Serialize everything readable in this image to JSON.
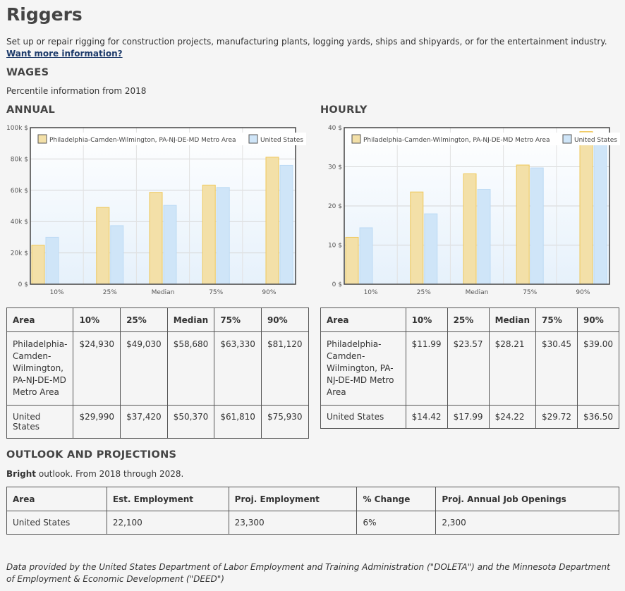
{
  "title": "Riggers",
  "description": "Set up or repair rigging for construction projects, manufacturing plants, logging yards, ships and shipyards, or for the entertainment industry.",
  "more_link": "Want more information?",
  "wages": {
    "heading": "WAGES",
    "note": "Percentile information from 2018",
    "annual_heading": "ANNUAL",
    "hourly_heading": "HOURLY"
  },
  "colors": {
    "metro": "#efc85a",
    "us": "#bcdaf4",
    "metro_fill": "#f3e0a8",
    "us_fill": "#cfe5f8"
  },
  "chart_data": [
    {
      "type": "bar",
      "categories": [
        "10%",
        "25%",
        "Median",
        "75%",
        "90%"
      ],
      "series": [
        {
          "name": "Philadelphia-Camden-Wilmington, PA-NJ-DE-MD Metro Area",
          "values": [
            24930,
            49030,
            58680,
            63330,
            81120
          ]
        },
        {
          "name": "United States",
          "values": [
            29990,
            37420,
            50370,
            61810,
            75930
          ]
        }
      ],
      "ylim": [
        0,
        100000
      ],
      "yticks": [
        "0 $",
        "20k $",
        "40k $",
        "60k $",
        "80k $",
        "100k $"
      ],
      "legend": "top",
      "grid": true
    },
    {
      "type": "bar",
      "categories": [
        "10%",
        "25%",
        "Median",
        "75%",
        "90%"
      ],
      "series": [
        {
          "name": "Philadelphia-Camden-Wilmington, PA-NJ-DE-MD Metro Area",
          "values": [
            11.99,
            23.57,
            28.21,
            30.45,
            39.0
          ]
        },
        {
          "name": "United States",
          "values": [
            14.42,
            17.99,
            24.22,
            29.72,
            36.5
          ]
        }
      ],
      "ylim": [
        0,
        40
      ],
      "yticks": [
        "0 $",
        "10 $",
        "20 $",
        "30 $",
        "40 $"
      ],
      "legend": "top",
      "grid": true
    }
  ],
  "annual_table": {
    "headers": [
      "Area",
      "10%",
      "25%",
      "Median",
      "75%",
      "90%"
    ],
    "rows": [
      [
        "Philadelphia-Camden-Wilmington, PA-NJ-DE-MD Metro Area",
        "$24,930",
        "$49,030",
        "$58,680",
        "$63,330",
        "$81,120"
      ],
      [
        "United States",
        "$29,990",
        "$37,420",
        "$50,370",
        "$61,810",
        "$75,930"
      ]
    ]
  },
  "hourly_table": {
    "headers": [
      "Area",
      "10%",
      "25%",
      "Median",
      "75%",
      "90%"
    ],
    "rows": [
      [
        "Philadelphia-Camden-Wilmington, PA-NJ-DE-MD Metro Area",
        "$11.99",
        "$23.57",
        "$28.21",
        "$30.45",
        "$39.00"
      ],
      [
        "United States",
        "$14.42",
        "$17.99",
        "$24.22",
        "$29.72",
        "$36.50"
      ]
    ]
  },
  "outlook": {
    "heading": "OUTLOOK AND PROJECTIONS",
    "rating": "Bright",
    "note_rest": " outlook. From 2018 through 2028.",
    "headers": [
      "Area",
      "Est. Employment",
      "Proj. Employment",
      "% Change",
      "Proj. Annual Job Openings"
    ],
    "rows": [
      [
        "United States",
        "22,100",
        "23,300",
        "6%",
        "2,300"
      ]
    ]
  },
  "footer": "Data provided by the United States Department of Labor Employment and Training Administration (\"DOLETA\") and the Minnesota Department of Employment & Economic Development (\"DEED\")"
}
